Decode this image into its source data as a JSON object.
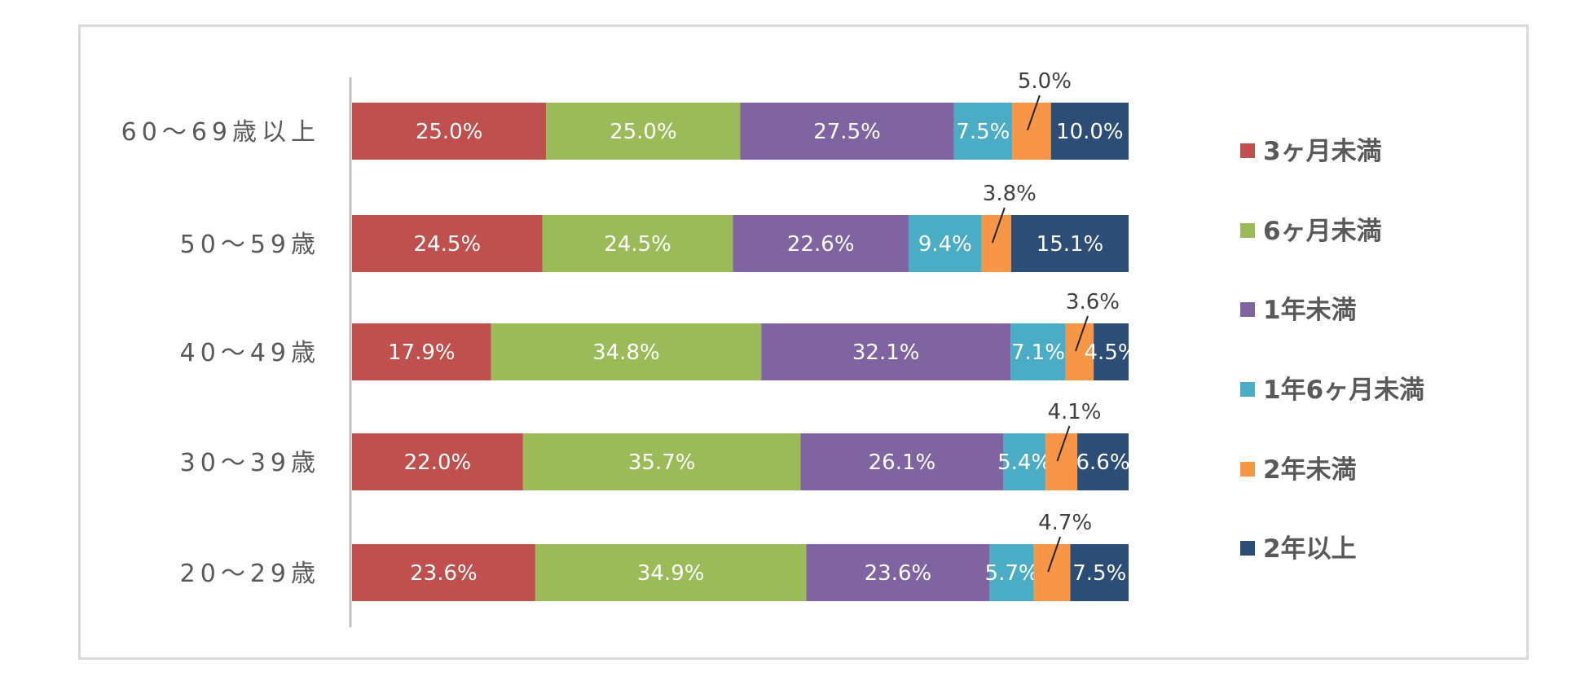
{
  "chart_data": {
    "type": "bar",
    "orientation": "horizontal",
    "stacked": true,
    "normalized": true,
    "categories": [
      "60～69歳以上",
      "50～59歳",
      "40～49歳",
      "30～39歳",
      "20～29歳"
    ],
    "series": [
      {
        "name": "3ヶ月未満",
        "color": "#c0504d",
        "values": [
          25.0,
          24.5,
          17.9,
          22.0,
          23.6
        ],
        "labels": [
          "25.0%",
          "24.5%",
          "17.9%",
          "22.0%",
          "23.6%"
        ]
      },
      {
        "name": "6ヶ月未満",
        "color": "#9bbb59",
        "values": [
          25.0,
          24.5,
          34.8,
          35.7,
          34.9
        ],
        "labels": [
          "25.0%",
          "24.5%",
          "34.8%",
          "35.7%",
          "34.9%"
        ]
      },
      {
        "name": "1年未満",
        "color": "#8064a2",
        "values": [
          27.5,
          22.6,
          32.1,
          26.1,
          23.6
        ],
        "labels": [
          "27.5%",
          "22.6%",
          "32.1%",
          "26.1%",
          "23.6%"
        ]
      },
      {
        "name": "1年6ヶ月未満",
        "color": "#4bacc6",
        "values": [
          7.5,
          9.4,
          7.1,
          5.4,
          5.7
        ],
        "labels": [
          "7.5%",
          "9.4%",
          "7.1%",
          "5.4%",
          "5.7%"
        ]
      },
      {
        "name": "2年未満",
        "color": "#f79646",
        "values": [
          5.0,
          3.8,
          3.6,
          4.1,
          4.7
        ],
        "labels": [
          "5.0%",
          "3.8%",
          "3.6%",
          "4.1%",
          "4.7%"
        ],
        "label_outside": true
      },
      {
        "name": "2年以上",
        "color": "#2c4d75",
        "values": [
          10.0,
          15.1,
          4.5,
          6.6,
          7.5
        ],
        "labels": [
          "10.0%",
          "15.1%",
          "4.5%",
          "6.6%",
          "7.5%"
        ]
      }
    ],
    "xlim": [
      0,
      100
    ],
    "legend": "right",
    "grid": false,
    "title": ""
  }
}
